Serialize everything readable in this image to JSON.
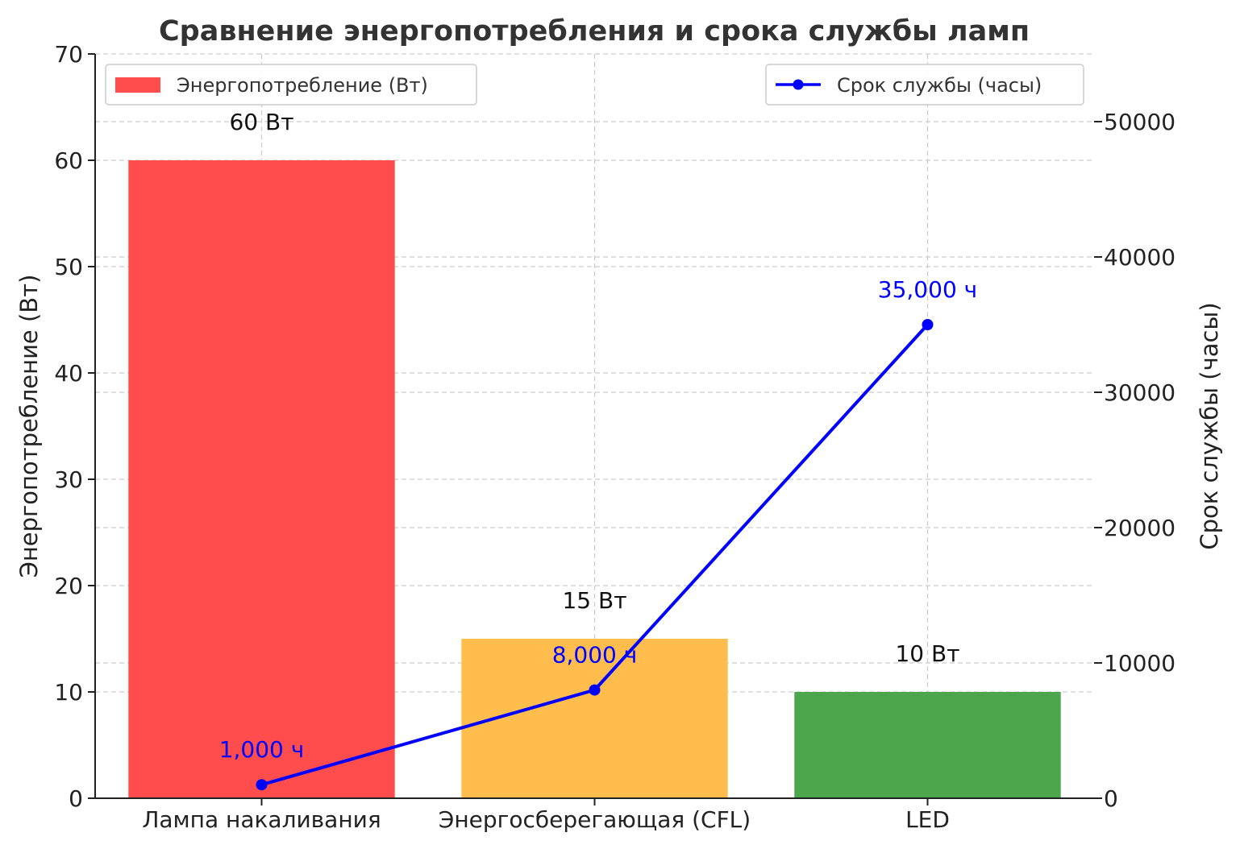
{
  "chart_data": {
    "type": "bar+line",
    "title": "Сравнение энергопотребления и срока службы ламп",
    "categories": [
      "Лампа накаливания",
      "Энергосберегающая (CFL)",
      "LED"
    ],
    "left_axis": {
      "label": "Энергопотребление (Вт)",
      "ylim": [
        0,
        70
      ],
      "ticks": [
        "0",
        "10",
        "20",
        "30",
        "40",
        "50",
        "60",
        "70"
      ]
    },
    "right_axis": {
      "label": "Срок службы (часы)",
      "ylim": [
        0,
        55000
      ],
      "ticks": [
        "0",
        "10000",
        "20000",
        "30000",
        "40000",
        "50000"
      ]
    },
    "series": [
      {
        "name": "Энергопотребление (Вт)",
        "kind": "bar",
        "axis": "left",
        "values": [
          60,
          15,
          10
        ],
        "colors": [
          "#ff4d4d",
          "#ffbd4d",
          "#4ca64c"
        ],
        "data_labels": [
          "60 Вт",
          "15 Вт",
          "10 Вт"
        ]
      },
      {
        "name": "Срок службы (часы)",
        "kind": "line",
        "axis": "right",
        "values": [
          1000,
          8000,
          35000
        ],
        "color": "#0000ff",
        "data_labels": [
          "1,000 ч",
          "8,000 ч",
          "35,000 ч"
        ]
      }
    ],
    "grid": true,
    "legends": {
      "bar": "top-left",
      "line": "top-right"
    }
  }
}
